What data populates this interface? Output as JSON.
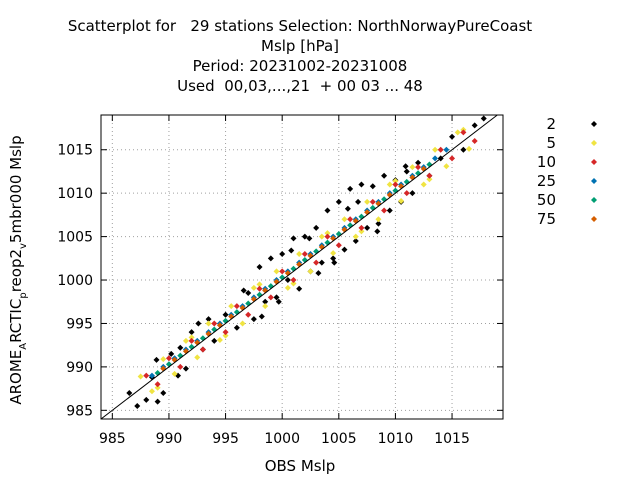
{
  "chart_data": {
    "type": "scatter",
    "title_lines": [
      "Scatterplot for   29 stations Selection: NorthNorwayPureCoast",
      "Mslp [hPa]",
      "Period: 20231002-20231008",
      "Used  00,03,...,21  + 00 03 ... 48"
    ],
    "xlabel": "OBS Mslp",
    "ylabel_parts": {
      "a": "AROME",
      "b": "A",
      "c": "RCTIC",
      "d": "p",
      "e": "reop2",
      "f": "v",
      "g": "5mbr000 Mslp"
    },
    "xlim": [
      984,
      1019.5
    ],
    "ylim": [
      984,
      1019
    ],
    "xticks": [
      985,
      990,
      995,
      1000,
      1005,
      1010,
      1015
    ],
    "yticks": [
      985,
      990,
      995,
      1000,
      1005,
      1010,
      1015
    ],
    "grid": true,
    "diagonal": true,
    "legend_position": "right",
    "series": [
      {
        "name": "2",
        "color": "#000000",
        "spread": 2.2,
        "x": [
          986.5,
          987.2,
          988.0,
          988.5,
          989.0,
          989.5,
          990.2,
          991.0,
          991.5,
          992.0,
          993.0,
          993.5,
          994.0,
          995.0,
          996.0,
          997.0,
          997.5,
          998.0,
          998.5,
          999.0,
          999.5,
          1000.0,
          1000.5,
          1001.0,
          1001.5,
          1002.0,
          1002.5,
          1003.0,
          1003.5,
          1004.0,
          1004.5,
          1005.0,
          1005.5,
          1006.0,
          1006.5,
          1007.0,
          1007.5,
          1008.0,
          1008.5,
          1009.0,
          1009.5,
          1010.0,
          1010.5,
          1011.0,
          1011.5,
          1012.0,
          1013.0,
          1014.0,
          1015.0,
          1016.0,
          1017.0,
          1017.8,
          988.9,
          990.8,
          992.6,
          998.2,
          1000.8,
          1003.2,
          1005.8,
          1008.4,
          1010.9,
          1002.4,
          1004.6,
          1006.7,
          999.7,
          996.6
        ],
        "y": [
          987.0,
          985.5,
          986.2,
          988.8,
          986.0,
          987.0,
          991.5,
          992.2,
          989.8,
          994.0,
          992.0,
          995.5,
          993.0,
          996.0,
          994.5,
          998.5,
          995.5,
          1001.5,
          997.5,
          1002.5,
          998.0,
          1003.0,
          1000.0,
          1004.8,
          999.0,
          1005.0,
          1001.0,
          1006.0,
          1002.0,
          1008.0,
          1002.5,
          1009.0,
          1003.5,
          1010.5,
          1004.5,
          1011.0,
          1006.0,
          1010.8,
          1006.5,
          1012.0,
          1008.0,
          1011.5,
          1009.0,
          1012.5,
          1010.0,
          1013.5,
          1012.0,
          1014.0,
          1016.5,
          1015.0,
          1017.8,
          1018.6,
          990.8,
          989.0,
          995.0,
          995.8,
          1003.4,
          1000.8,
          1008.2,
          1005.6,
          1013.1,
          1004.8,
          1002.0,
          1009.0,
          997.5,
          998.8
        ]
      },
      {
        "name": "5",
        "color": "#f0e442",
        "spread": 1.6,
        "x": [
          987.5,
          988.5,
          989.5,
          990.5,
          991.5,
          992.5,
          993.5,
          994.5,
          995.5,
          996.5,
          997.5,
          998.5,
          999.5,
          1000.5,
          1001.5,
          1002.5,
          1003.5,
          1004.5,
          1005.5,
          1006.5,
          1007.5,
          1008.5,
          1009.5,
          1010.5,
          1011.5,
          1012.5,
          1013.5,
          1014.5,
          1015.5,
          1016.5,
          989.0,
          992.0,
          995.0,
          998.0,
          1001.0,
          1004.0,
          1007.0,
          1010.0,
          1013.0,
          1016.0
        ],
        "y": [
          988.9,
          987.2,
          990.9,
          989.2,
          993.0,
          991.1,
          995.0,
          993.1,
          997.0,
          995.0,
          999.1,
          997.0,
          1001.0,
          999.1,
          1003.0,
          1001.0,
          1005.0,
          1003.1,
          1007.0,
          1005.0,
          1009.0,
          1007.0,
          1011.0,
          1009.1,
          1013.0,
          1011.0,
          1015.0,
          1013.1,
          1017.0,
          1015.1,
          987.6,
          993.4,
          993.6,
          999.5,
          999.6,
          1005.4,
          1005.6,
          1011.4,
          1011.6,
          1017.3
        ]
      },
      {
        "name": "10",
        "color": "#d62728",
        "spread": 1.1,
        "x": [
          988.0,
          989.0,
          990.0,
          991.0,
          992.0,
          993.0,
          994.0,
          995.0,
          996.0,
          997.0,
          998.0,
          999.0,
          1000.0,
          1001.0,
          1002.0,
          1003.0,
          1004.0,
          1005.0,
          1006.0,
          1007.0,
          1008.0,
          1009.0,
          1010.0,
          1011.0,
          1012.0,
          1013.0,
          1014.0,
          1015.0,
          1016.0,
          1017.0
        ],
        "y": [
          989.0,
          988.0,
          991.0,
          990.0,
          993.0,
          992.0,
          995.0,
          994.0,
          997.0,
          996.0,
          999.0,
          998.0,
          1001.0,
          1000.0,
          1003.0,
          1002.0,
          1005.0,
          1004.0,
          1007.0,
          1006.0,
          1009.0,
          1008.0,
          1011.0,
          1010.0,
          1013.0,
          1012.0,
          1015.0,
          1014.0,
          1017.0,
          1016.0
        ]
      },
      {
        "name": "25",
        "color": "#0072b2",
        "spread": 0.6,
        "x": [
          988.5,
          989.5,
          990.5,
          991.5,
          992.5,
          993.5,
          994.5,
          995.5,
          996.5,
          997.5,
          998.5,
          999.5,
          1000.5,
          1001.5,
          1002.5,
          1003.5,
          1004.5,
          1005.5,
          1006.5,
          1007.5,
          1008.5,
          1009.5,
          1010.5,
          1011.5,
          1012.5,
          1013.5,
          1014.5
        ],
        "y": [
          989.0,
          990.0,
          991.0,
          992.0,
          993.0,
          994.0,
          995.0,
          996.0,
          997.0,
          998.0,
          999.0,
          1000.0,
          1001.0,
          1002.0,
          1003.0,
          1004.0,
          1005.0,
          1006.0,
          1007.0,
          1008.0,
          1009.0,
          1010.0,
          1011.0,
          1012.0,
          1013.0,
          1014.0,
          1015.0
        ]
      },
      {
        "name": "50",
        "color": "#009e73",
        "spread": 0.3,
        "x": [
          989.0,
          990.0,
          991.0,
          992.0,
          993.0,
          994.0,
          995.0,
          996.0,
          997.0,
          998.0,
          999.0,
          1000.0,
          1001.0,
          1002.0,
          1003.0,
          1004.0,
          1005.0,
          1006.0,
          1007.0,
          1008.0,
          1009.0,
          1010.0,
          1011.0,
          1012.0,
          1013.0
        ],
        "y": [
          989.3,
          990.3,
          991.3,
          992.3,
          993.3,
          994.3,
          995.3,
          996.3,
          997.3,
          998.3,
          999.3,
          1000.3,
          1001.3,
          1002.3,
          1003.3,
          1004.3,
          1005.3,
          1006.3,
          1007.3,
          1008.3,
          1009.3,
          1010.3,
          1011.3,
          1012.3,
          1013.3
        ]
      },
      {
        "name": "75",
        "color": "#d55e00",
        "spread": 0.25,
        "x": [
          989.5,
          990.5,
          991.5,
          992.5,
          993.5,
          994.5,
          995.5,
          996.5,
          997.5,
          998.5,
          999.5,
          1000.5,
          1001.5,
          1002.5,
          1003.5,
          1004.5,
          1005.5,
          1006.5,
          1007.5,
          1008.5,
          1009.5,
          1010.5,
          1011.5,
          1012.5
        ],
        "y": [
          989.8,
          990.8,
          991.8,
          992.8,
          993.8,
          994.8,
          995.8,
          996.8,
          997.8,
          998.8,
          999.8,
          1000.8,
          1001.8,
          1002.8,
          1003.8,
          1004.8,
          1005.8,
          1006.8,
          1007.8,
          1008.8,
          1009.8,
          1010.8,
          1011.8,
          1012.8
        ]
      }
    ]
  }
}
